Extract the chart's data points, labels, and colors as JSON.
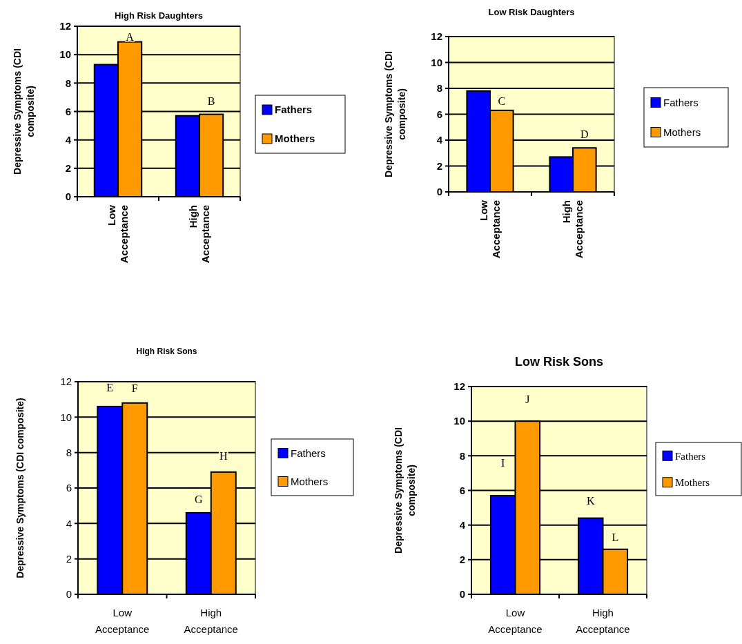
{
  "chart_data": [
    {
      "type": "bar",
      "title": "High Risk Daughters",
      "ylabel": "Depressive Symptoms (CDI composite)",
      "categories": [
        "Low Acceptance",
        "High Acceptance"
      ],
      "series": [
        {
          "name": "Fathers",
          "color": "#0000ff",
          "values": [
            9.3,
            5.7
          ]
        },
        {
          "name": "Mothers",
          "color": "#ff9900",
          "values": [
            10.9,
            5.8
          ]
        }
      ],
      "ylim": [
        0,
        12
      ],
      "yticks": [
        0,
        2,
        4,
        6,
        8,
        10,
        12
      ],
      "grid": "y",
      "legend": "right",
      "annotations": [
        {
          "text": "A",
          "x": "Low Acceptance",
          "y": 10.9
        },
        {
          "text": "B",
          "x": "High Acceptance",
          "y": 5.8
        }
      ]
    },
    {
      "type": "bar",
      "title": "Low Risk Daughters",
      "ylabel": "Depressive Symptoms (CDI composite)",
      "categories": [
        "Low Acceptance",
        "High Acceptance"
      ],
      "series": [
        {
          "name": "Fathers",
          "color": "#0000ff",
          "values": [
            7.8,
            2.7
          ]
        },
        {
          "name": "Mothers",
          "color": "#ff9900",
          "values": [
            6.3,
            3.4
          ]
        }
      ],
      "ylim": [
        0,
        12
      ],
      "yticks": [
        0,
        2,
        4,
        6,
        8,
        10,
        12
      ],
      "grid": "y",
      "legend": "right",
      "annotations": [
        {
          "text": "C",
          "x": "Low Acceptance",
          "y": 6.3
        },
        {
          "text": "D",
          "x": "High Acceptance",
          "y": 3.4
        }
      ]
    },
    {
      "type": "bar",
      "title": "High Risk Sons",
      "ylabel": "Depressive Symptoms (CDI composite)",
      "categories": [
        "Low Acceptance",
        "High Acceptance"
      ],
      "series": [
        {
          "name": "Fathers",
          "color": "#0000ff",
          "values": [
            10.6,
            4.6
          ]
        },
        {
          "name": "Mothers",
          "color": "#ff9900",
          "values": [
            10.8,
            6.9
          ]
        }
      ],
      "ylim": [
        0,
        12
      ],
      "yticks": [
        0,
        2,
        4,
        6,
        8,
        10,
        12
      ],
      "grid": "y",
      "legend": "right",
      "annotations": [
        {
          "text": "E",
          "x": "Low Acceptance",
          "y": 10.6
        },
        {
          "text": "F",
          "x": "Low Acceptance",
          "y": 10.8
        },
        {
          "text": "G",
          "x": "High Acceptance",
          "y": 4.6
        },
        {
          "text": "H",
          "x": "High Acceptance",
          "y": 6.9
        }
      ]
    },
    {
      "type": "bar",
      "title": "Low Risk Sons",
      "ylabel": "Depressive Symptoms (CDI composite)",
      "categories": [
        "Low Acceptance",
        "High Acceptance"
      ],
      "series": [
        {
          "name": "Fathers",
          "color": "#0000ff",
          "values": [
            5.7,
            4.4
          ]
        },
        {
          "name": "Mothers",
          "color": "#ff9900",
          "values": [
            10,
            2.6
          ]
        }
      ],
      "ylim": [
        0,
        12
      ],
      "yticks": [
        0,
        2,
        4,
        6,
        8,
        10,
        12
      ],
      "grid": "y",
      "legend": "right",
      "annotations": [
        {
          "text": "I",
          "x": "Low Acceptance",
          "y": 5.7
        },
        {
          "text": "J",
          "x": "Low Acceptance",
          "y": 10
        },
        {
          "text": "K",
          "x": "High Acceptance",
          "y": 4.4
        },
        {
          "text": "L",
          "x": "High Acceptance",
          "y": 2.6
        }
      ]
    }
  ]
}
